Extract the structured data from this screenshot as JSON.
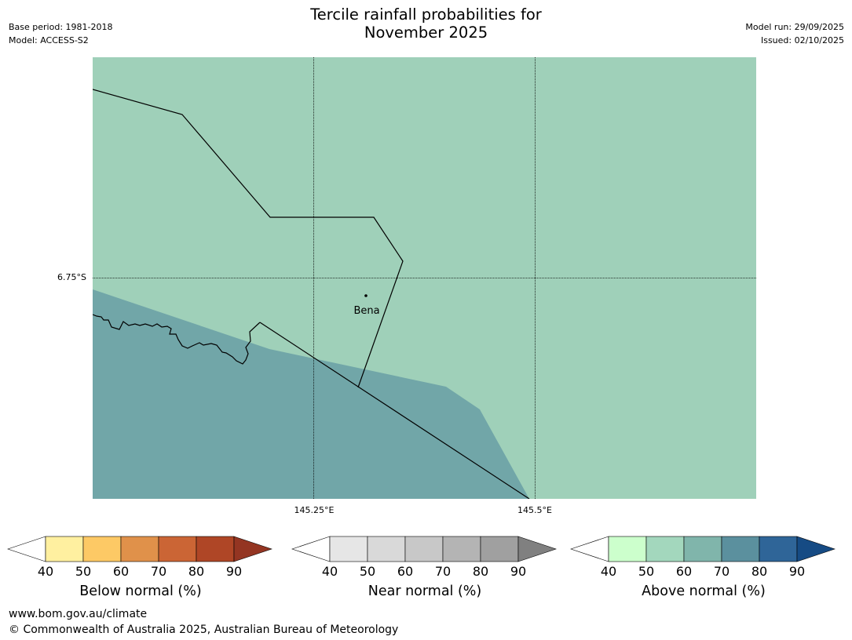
{
  "header": {
    "title_line1": "Tercile rainfall probabilities for",
    "title_line2": "November 2025",
    "base_period": "Base period: 1981-2018",
    "model": "Model: ACCESS-S2",
    "model_run": "Model run: 29/09/2025",
    "issued": "Issued: 02/10/2025"
  },
  "map": {
    "place_label": "Bena",
    "lat_label": "6.75°S",
    "lon_labels": [
      "145.25°E",
      "145.5°E"
    ],
    "colors": {
      "above_50_60": "#9fd0b9",
      "above_60_70": "#71a6a8",
      "boundary": "#000000"
    }
  },
  "legends": [
    {
      "label": "Below normal (%)",
      "ticks": [
        "40",
        "50",
        "60",
        "70",
        "80",
        "90"
      ],
      "colors": [
        "#fff0a0",
        "#fdc965",
        "#e0914a",
        "#cb6535",
        "#af4626",
        "#943522"
      ]
    },
    {
      "label": "Near normal (%)",
      "ticks": [
        "40",
        "50",
        "60",
        "70",
        "80",
        "90"
      ],
      "colors": [
        "#e6e6e6",
        "#d9d9d9",
        "#c8c8c8",
        "#b4b4b4",
        "#a0a0a0",
        "#808080"
      ]
    },
    {
      "label": "Above normal (%)",
      "ticks": [
        "40",
        "50",
        "60",
        "70",
        "80",
        "90"
      ],
      "colors": [
        "#ccffcc",
        "#a3d7bd",
        "#80b5ab",
        "#5b909e",
        "#2f6598",
        "#164b84"
      ]
    }
  ],
  "footer": {
    "url": "www.bom.gov.au/climate",
    "copyright": "© Commonwealth of Australia 2025, Australian Bureau of Meteorology"
  }
}
